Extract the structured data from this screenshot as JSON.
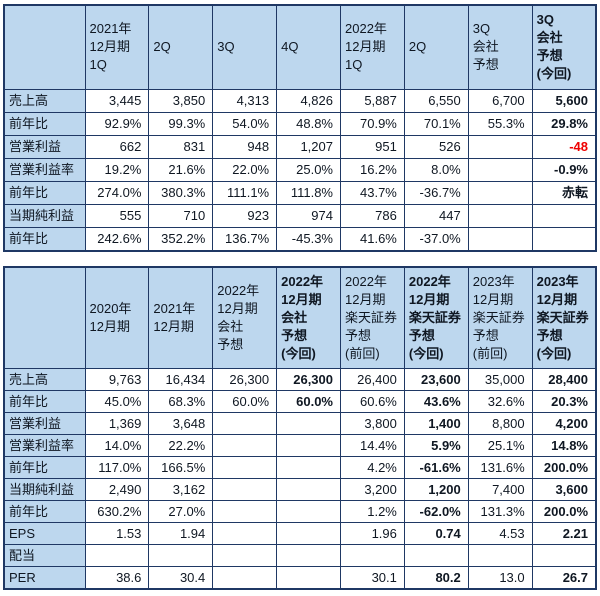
{
  "colors": {
    "header_fill": "#bdd7ee",
    "border": "#1f3864",
    "text": "#0f1722",
    "negative": "#ee0000",
    "background": "#ffffff"
  },
  "chart_data": [
    {
      "type": "table",
      "name": "quarterly-results-table",
      "label_col_width": "81px",
      "col_headers": [
        {
          "text": "",
          "bold": false
        },
        {
          "text": "2021年\n12月期\n1Q",
          "bold": false
        },
        {
          "text": "2Q",
          "bold": false
        },
        {
          "text": "3Q",
          "bold": false
        },
        {
          "text": "4Q",
          "bold": false
        },
        {
          "text": "2022年\n12月期\n1Q",
          "bold": false
        },
        {
          "text": "2Q",
          "bold": false
        },
        {
          "text": "3Q\n会社\n予想",
          "bold": false
        },
        {
          "text": "3Q\n会社\n予想\n(今回)",
          "bold": true
        }
      ],
      "rows": [
        {
          "label": "売上高",
          "cells": [
            {
              "t": "3,445"
            },
            {
              "t": "3,850"
            },
            {
              "t": "4,313"
            },
            {
              "t": "4,826"
            },
            {
              "t": "5,887"
            },
            {
              "t": "6,550"
            },
            {
              "t": "6,700"
            },
            {
              "t": "5,600",
              "bold": true
            }
          ]
        },
        {
          "label": "前年比",
          "cells": [
            {
              "t": "92.9%"
            },
            {
              "t": "99.3%"
            },
            {
              "t": "54.0%"
            },
            {
              "t": "48.8%"
            },
            {
              "t": "70.9%"
            },
            {
              "t": "70.1%"
            },
            {
              "t": "55.3%"
            },
            {
              "t": "29.8%",
              "bold": true
            }
          ]
        },
        {
          "label": "営業利益",
          "cells": [
            {
              "t": "662"
            },
            {
              "t": "831"
            },
            {
              "t": "948"
            },
            {
              "t": "1,207"
            },
            {
              "t": "951"
            },
            {
              "t": "526"
            },
            {
              "t": ""
            },
            {
              "t": "-48",
              "bold": true,
              "neg": true
            }
          ]
        },
        {
          "label": "営業利益率",
          "cells": [
            {
              "t": "19.2%"
            },
            {
              "t": "21.6%"
            },
            {
              "t": "22.0%"
            },
            {
              "t": "25.0%"
            },
            {
              "t": "16.2%"
            },
            {
              "t": "8.0%"
            },
            {
              "t": ""
            },
            {
              "t": "-0.9%",
              "bold": true
            }
          ]
        },
        {
          "label": "前年比",
          "cells": [
            {
              "t": "274.0%"
            },
            {
              "t": "380.3%"
            },
            {
              "t": "111.1%"
            },
            {
              "t": "111.8%"
            },
            {
              "t": "43.7%"
            },
            {
              "t": "-36.7%"
            },
            {
              "t": ""
            },
            {
              "t": "赤転",
              "bold": true
            }
          ]
        },
        {
          "label": "当期純利益",
          "cells": [
            {
              "t": "555"
            },
            {
              "t": "710"
            },
            {
              "t": "923"
            },
            {
              "t": "974"
            },
            {
              "t": "786"
            },
            {
              "t": "447"
            },
            {
              "t": ""
            },
            {
              "t": ""
            }
          ]
        },
        {
          "label": "前年比",
          "cells": [
            {
              "t": "242.6%"
            },
            {
              "t": "352.2%"
            },
            {
              "t": "136.7%"
            },
            {
              "t": "-45.3%"
            },
            {
              "t": "41.6%"
            },
            {
              "t": "-37.0%"
            },
            {
              "t": ""
            },
            {
              "t": ""
            }
          ]
        }
      ]
    },
    {
      "type": "table",
      "name": "fiscal-year-forecast-table",
      "label_col_width": "81px",
      "col_headers": [
        {
          "text": "",
          "bold": false
        },
        {
          "text": "2020年\n12月期",
          "bold": false
        },
        {
          "text": "2021年\n12月期",
          "bold": false
        },
        {
          "text": "2022年\n12月期\n会社\n予想",
          "bold": false
        },
        {
          "text": "2022年\n12月期\n会社\n予想\n(今回)",
          "bold": true
        },
        {
          "text": "2022年\n12月期\n楽天証券\n予想\n(前回)",
          "bold": false
        },
        {
          "text": "2022年\n12月期\n楽天証券\n予想\n(今回)",
          "bold": true
        },
        {
          "text": "2023年\n12月期\n楽天証券\n予想\n(前回)",
          "bold": false
        },
        {
          "text": "2023年\n12月期\n楽天証券\n予想\n(今回)",
          "bold": true
        }
      ],
      "rows": [
        {
          "label": "売上高",
          "cells": [
            {
              "t": "9,763"
            },
            {
              "t": "16,434"
            },
            {
              "t": "26,300"
            },
            {
              "t": "26,300",
              "bold": true
            },
            {
              "t": "26,400"
            },
            {
              "t": "23,600",
              "bold": true
            },
            {
              "t": "35,000"
            },
            {
              "t": "28,400",
              "bold": true
            }
          ]
        },
        {
          "label": "前年比",
          "cells": [
            {
              "t": "45.0%"
            },
            {
              "t": "68.3%"
            },
            {
              "t": "60.0%"
            },
            {
              "t": "60.0%",
              "bold": true
            },
            {
              "t": "60.6%"
            },
            {
              "t": "43.6%",
              "bold": true
            },
            {
              "t": "32.6%"
            },
            {
              "t": "20.3%",
              "bold": true
            }
          ]
        },
        {
          "label": "営業利益",
          "cells": [
            {
              "t": "1,369"
            },
            {
              "t": "3,648"
            },
            {
              "t": ""
            },
            {
              "t": ""
            },
            {
              "t": "3,800"
            },
            {
              "t": "1,400",
              "bold": true
            },
            {
              "t": "8,800"
            },
            {
              "t": "4,200",
              "bold": true
            }
          ]
        },
        {
          "label": "営業利益率",
          "cells": [
            {
              "t": "14.0%"
            },
            {
              "t": "22.2%"
            },
            {
              "t": ""
            },
            {
              "t": ""
            },
            {
              "t": "14.4%"
            },
            {
              "t": "5.9%",
              "bold": true
            },
            {
              "t": "25.1%"
            },
            {
              "t": "14.8%",
              "bold": true
            }
          ]
        },
        {
          "label": "前年比",
          "cells": [
            {
              "t": "117.0%"
            },
            {
              "t": "166.5%"
            },
            {
              "t": ""
            },
            {
              "t": ""
            },
            {
              "t": "4.2%"
            },
            {
              "t": "-61.6%",
              "bold": true
            },
            {
              "t": "131.6%"
            },
            {
              "t": "200.0%",
              "bold": true
            }
          ]
        },
        {
          "label": "当期純利益",
          "cells": [
            {
              "t": "2,490"
            },
            {
              "t": "3,162"
            },
            {
              "t": ""
            },
            {
              "t": ""
            },
            {
              "t": "3,200"
            },
            {
              "t": "1,200",
              "bold": true
            },
            {
              "t": "7,400"
            },
            {
              "t": "3,600",
              "bold": true
            }
          ]
        },
        {
          "label": "前年比",
          "cells": [
            {
              "t": "630.2%"
            },
            {
              "t": "27.0%"
            },
            {
              "t": ""
            },
            {
              "t": ""
            },
            {
              "t": "1.2%"
            },
            {
              "t": "-62.0%",
              "bold": true
            },
            {
              "t": "131.3%"
            },
            {
              "t": "200.0%",
              "bold": true
            }
          ]
        },
        {
          "label": "EPS",
          "cells": [
            {
              "t": "1.53"
            },
            {
              "t": "1.94"
            },
            {
              "t": ""
            },
            {
              "t": ""
            },
            {
              "t": "1.96"
            },
            {
              "t": "0.74",
              "bold": true
            },
            {
              "t": "4.53"
            },
            {
              "t": "2.21",
              "bold": true
            }
          ]
        },
        {
          "label": "配当",
          "cells": [
            {
              "t": ""
            },
            {
              "t": ""
            },
            {
              "t": ""
            },
            {
              "t": ""
            },
            {
              "t": ""
            },
            {
              "t": ""
            },
            {
              "t": ""
            },
            {
              "t": ""
            }
          ]
        },
        {
          "label": "PER",
          "cells": [
            {
              "t": "38.6"
            },
            {
              "t": "30.4"
            },
            {
              "t": ""
            },
            {
              "t": ""
            },
            {
              "t": "30.1"
            },
            {
              "t": "80.2",
              "bold": true
            },
            {
              "t": "13.0"
            },
            {
              "t": "26.7",
              "bold": true
            }
          ]
        }
      ]
    }
  ]
}
